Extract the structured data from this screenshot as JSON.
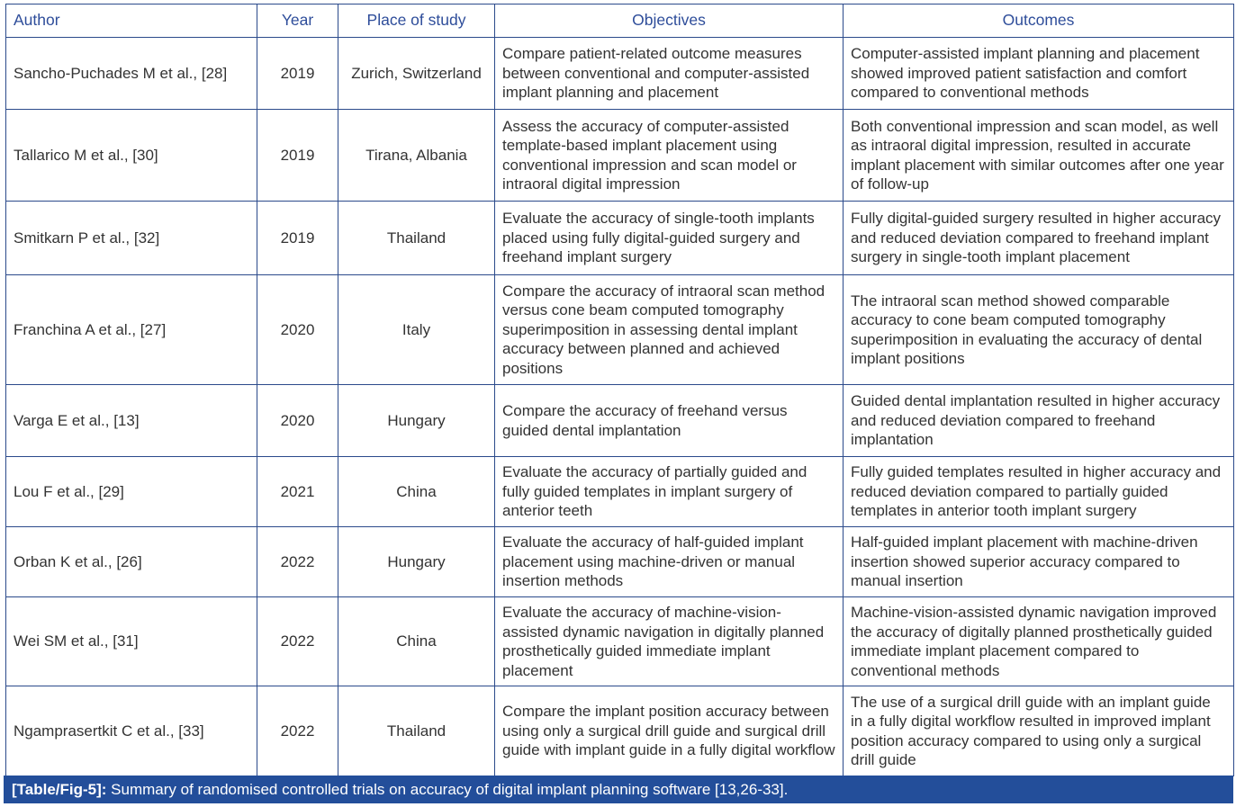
{
  "headers": {
    "author": "Author",
    "year": "Year",
    "place": "Place of study",
    "objectives": "Objectives",
    "outcomes": "Outcomes"
  },
  "rows": [
    {
      "author": "Sancho-Puchades M et al., [28]",
      "year": "2019",
      "place": "Zurich, Switzerland",
      "objectives": "Compare patient-related outcome measures between conventional and computer-assisted implant planning and placement",
      "outcomes": "Computer-assisted implant planning and placement showed improved patient satisfaction and comfort compared to conventional methods"
    },
    {
      "author": "Tallarico M et al., [30]",
      "year": "2019",
      "place": "Tirana, Albania",
      "objectives": "Assess the accuracy of computer-assisted template-based implant placement using conventional impression and scan model or intraoral digital impression",
      "outcomes": "Both conventional impression and scan model, as well as intraoral digital impression, resulted in accurate implant placement with similar outcomes after one year of follow-up"
    },
    {
      "author": "Smitkarn P et al., [32]",
      "year": "2019",
      "place": "Thailand",
      "objectives": "Evaluate the accuracy of single-tooth implants placed using fully digital-guided surgery and freehand implant surgery",
      "outcomes": "Fully digital-guided surgery resulted in higher accuracy and reduced deviation compared to freehand implant surgery in single-tooth implant placement"
    },
    {
      "author": "Franchina A et al., [27]",
      "year": "2020",
      "place": "Italy",
      "objectives": "Compare the accuracy of intraoral scan method versus cone beam computed tomography superimposition in assessing dental implant accuracy between planned and achieved positions",
      "outcomes": "The intraoral scan method showed comparable accuracy to cone beam computed tomography superimposition in evaluating the accuracy of dental implant positions"
    },
    {
      "author": "Varga E et al., [13]",
      "year": "2020",
      "place": "Hungary",
      "objectives": "Compare the accuracy of freehand versus guided dental implantation",
      "outcomes": "Guided dental implantation resulted in higher accuracy and reduced deviation compared to freehand implantation"
    },
    {
      "author": "Lou F et al., [29]",
      "year": "2021",
      "place": "China",
      "objectives": "Evaluate the accuracy of partially guided and fully guided templates in implant surgery of anterior teeth",
      "outcomes": "Fully guided templates resulted in higher accuracy and reduced deviation compared to partially guided templates in anterior tooth implant surgery"
    },
    {
      "author": "Orban K et al., [26]",
      "year": "2022",
      "place": "Hungary",
      "objectives": "Evaluate the accuracy of half-guided implant placement using machine-driven or manual insertion methods",
      "outcomes": "Half-guided implant placement with machine-driven insertion showed superior accuracy compared to manual insertion"
    },
    {
      "author": "Wei SM et al., [31]",
      "year": "2022",
      "place": "China",
      "objectives": "Evaluate the accuracy of machine-vision-assisted dynamic navigation in digitally planned prosthetically guided immediate implant placement",
      "outcomes": "Machine-vision-assisted dynamic navigation improved the accuracy of digitally planned prosthetically guided immediate implant placement compared to conventional methods"
    },
    {
      "author": "Ngamprasertkit C et al., [33]",
      "year": "2022",
      "place": "Thailand",
      "objectives": "Compare the implant position accuracy between using only a surgical drill guide and surgical drill guide with implant guide in a fully digital workflow",
      "outcomes": "The use of a surgical drill guide with an implant guide in a fully digital workflow resulted in improved implant position accuracy compared to using only a surgical drill guide"
    }
  ],
  "caption": {
    "label": "[Table/Fig-5]:",
    "text": " Summary of randomised controlled trials on accuracy of digital implant planning software [13,26-33]."
  },
  "colors": {
    "border": "#2b4a8b",
    "header_text": "#2e4d9a",
    "caption_bg": "#234e9a"
  }
}
